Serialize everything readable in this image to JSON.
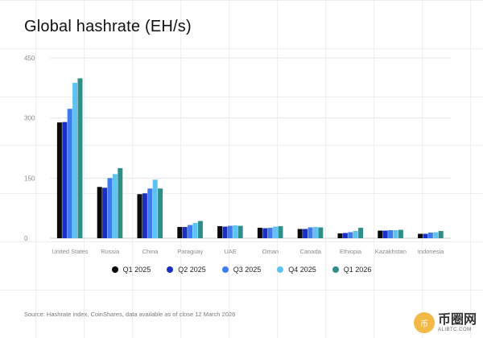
{
  "header": {
    "title": "Global hashrate (EH/s)"
  },
  "chart_data": {
    "type": "bar",
    "title": "Global hashrate (EH/s)",
    "xlabel": "",
    "ylabel": "",
    "ylim": [
      0,
      450
    ],
    "yticks": [
      0,
      150,
      300,
      450
    ],
    "grid": true,
    "legend_position": "bottom-center",
    "categories": [
      "United States",
      "Russia",
      "China",
      "Paraguay",
      "UAE",
      "Oman",
      "Canada",
      "Ethiopia",
      "Kazakhstan",
      "Indonesia"
    ],
    "series": [
      {
        "name": "Q1 2025",
        "color": "#0a0a0a",
        "values": [
          289,
          128,
          110,
          28,
          30,
          26,
          23,
          12,
          19,
          11
        ]
      },
      {
        "name": "Q2 2025",
        "color": "#1a2fc4",
        "values": [
          290,
          126,
          112,
          28,
          29,
          25,
          23,
          13,
          19,
          11
        ]
      },
      {
        "name": "Q3 2025",
        "color": "#3f7bf0",
        "values": [
          323,
          150,
          124,
          33,
          31,
          26,
          27,
          15,
          20,
          14
        ]
      },
      {
        "name": "Q4 2025",
        "color": "#5ec2f2",
        "values": [
          388,
          160,
          146,
          38,
          32,
          29,
          28,
          18,
          20,
          15
        ]
      },
      {
        "name": "Q1 2026",
        "color": "#2e8f8a",
        "values": [
          399,
          175,
          124,
          43,
          31,
          30,
          27,
          26,
          21,
          18
        ]
      }
    ]
  },
  "source": "Source: Hashrate index, CoinShares, data available as of close 12 March 2026",
  "watermark": {
    "main": "币圈网",
    "sub": "ALIBTC.COM",
    "badge": "币"
  }
}
